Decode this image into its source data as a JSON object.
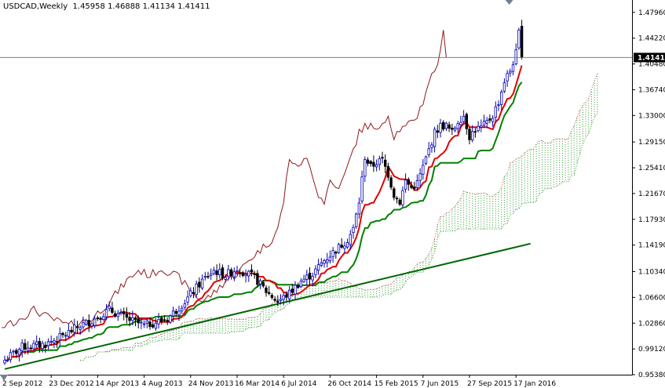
{
  "header": {
    "symbol": "USDCAD,Weekly",
    "ohlc": "1.45958 1.46888 1.41134 1.41411"
  },
  "current_price_label": "1.41411",
  "colors": {
    "candle_up": "#0000b4",
    "candle_down": "#000000",
    "tenkan": "#e00000",
    "kijun": "#008000",
    "chikou": "#8b1a1a",
    "cloud_up": "#2a9a2a",
    "cloud_down": "#c05050",
    "trendline": "#006400",
    "price_line": "#708090",
    "label_bg": "#000000"
  },
  "chart_data": {
    "type": "line",
    "indicator": "Ichimoku Kinko Hyo",
    "ylim": [
      0.9538,
      1.4976
    ],
    "y_ticks": [
      1.4796,
      1.4422,
      1.4048,
      1.3674,
      1.33,
      1.2915,
      1.2541,
      1.2167,
      1.1793,
      1.1419,
      1.1034,
      1.066,
      1.0286,
      0.9912,
      0.9538
    ],
    "y_tick_labels": [
      "1.47960",
      "1.44220",
      "1.40480",
      "1.36740",
      "1.33000",
      "1.29150",
      "1.25410",
      "1.21670",
      "1.17930",
      "1.14190",
      "1.10340",
      "1.06600",
      "1.02860",
      "0.99120",
      "0.95380"
    ],
    "x_tick_labels": [
      {
        "label": "2 Sep 2012",
        "bar": 0
      },
      {
        "label": "23 Dec 2012",
        "bar": 16
      },
      {
        "label": "14 Apr 2013",
        "bar": 32
      },
      {
        "label": "4 Aug 2013",
        "bar": 48
      },
      {
        "label": "24 Nov 2013",
        "bar": 64
      },
      {
        "label": "16 Mar 2014",
        "bar": 80
      },
      {
        "label": "6 Jul 2014",
        "bar": 96
      },
      {
        "label": "26 Oct 2014",
        "bar": 112
      },
      {
        "label": "15 Feb 2015",
        "bar": 128
      },
      {
        "label": "7 Jun 2015",
        "bar": 144
      },
      {
        "label": "27 Sep 2015",
        "bar": 160
      },
      {
        "label": "17 Jan 2016",
        "bar": 176
      }
    ],
    "weekly_close_anchors": [
      [
        0,
        0.975
      ],
      [
        6,
        0.994
      ],
      [
        14,
        0.998
      ],
      [
        20,
        1.01
      ],
      [
        26,
        1.025
      ],
      [
        30,
        1.032
      ],
      [
        36,
        1.048
      ],
      [
        42,
        1.035
      ],
      [
        48,
        1.025
      ],
      [
        56,
        1.035
      ],
      [
        62,
        1.06
      ],
      [
        68,
        1.09
      ],
      [
        72,
        1.105
      ],
      [
        76,
        1.098
      ],
      [
        80,
        1.108
      ],
      [
        86,
        1.095
      ],
      [
        90,
        1.075
      ],
      [
        94,
        1.06
      ],
      [
        98,
        1.072
      ],
      [
        102,
        1.09
      ],
      [
        106,
        1.1
      ],
      [
        110,
        1.12
      ],
      [
        114,
        1.135
      ],
      [
        118,
        1.15
      ],
      [
        120,
        1.165
      ],
      [
        122,
        1.205
      ],
      [
        124,
        1.27
      ],
      [
        126,
        1.255
      ],
      [
        128,
        1.262
      ],
      [
        130,
        1.265
      ],
      [
        132,
        1.245
      ],
      [
        134,
        1.215
      ],
      [
        136,
        1.205
      ],
      [
        138,
        1.235
      ],
      [
        140,
        1.225
      ],
      [
        142,
        1.232
      ],
      [
        144,
        1.255
      ],
      [
        146,
        1.28
      ],
      [
        148,
        1.305
      ],
      [
        150,
        1.315
      ],
      [
        152,
        1.315
      ],
      [
        154,
        1.305
      ],
      [
        156,
        1.322
      ],
      [
        158,
        1.33
      ],
      [
        160,
        1.3
      ],
      [
        162,
        1.31
      ],
      [
        164,
        1.312
      ],
      [
        166,
        1.32
      ],
      [
        168,
        1.33
      ],
      [
        170,
        1.35
      ],
      [
        172,
        1.38
      ],
      [
        174,
        1.395
      ],
      [
        176,
        1.42
      ],
      [
        177,
        1.45
      ],
      [
        178,
        1.4141
      ]
    ],
    "trendline": {
      "start": [
        0,
        0.962
      ],
      "end": [
        181,
        1.144
      ]
    },
    "current_price": 1.41411
  }
}
